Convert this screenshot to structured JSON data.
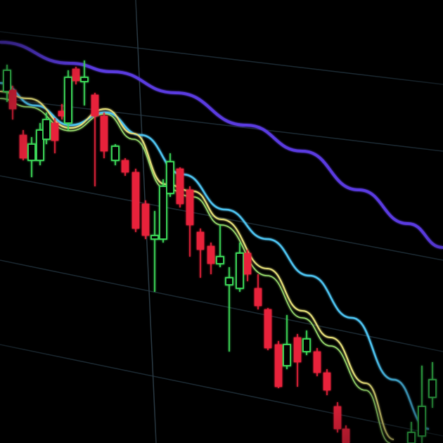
{
  "colors": {
    "background": "#000000",
    "up_candle": "#3ddc5a",
    "down_candle": "#e8243a",
    "ma_slow": "#5a3ae0",
    "ma_mid": "#4ec3f0",
    "ma_fast": "#e6e07a",
    "ma_fast2": "#9be070",
    "grid": "#1c2a33"
  }
}
